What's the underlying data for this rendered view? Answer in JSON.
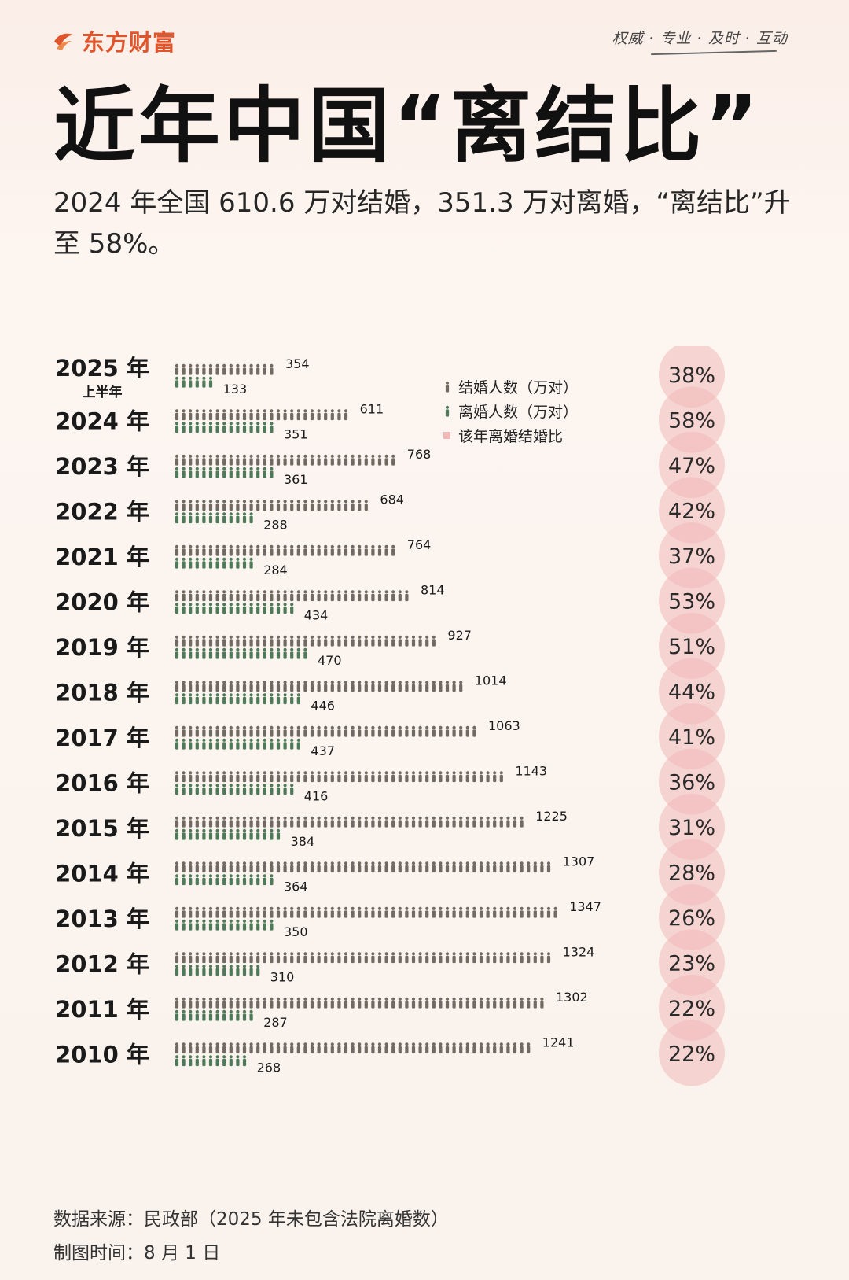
{
  "header": {
    "brand": "东方财富",
    "slogan": "权威 · 专业 · 及时 · 互动"
  },
  "title": "近年中国“离结比”",
  "subtitle": "2024 年全国 610.6 万对结婚，351.3 万对离婚，“离结比”升至 58%。",
  "legend": {
    "marriage": "结婚人数（万对）",
    "divorce": "离婚人数（万对）",
    "ratio": "该年离婚结婚比"
  },
  "colors": {
    "marriage": "#6f6a62",
    "divorce": "#4e7a5a",
    "circle": "#f1b8b8",
    "text": "#1a1a1a"
  },
  "chart_data": {
    "type": "bar",
    "categories": [
      "2025 年",
      "2024 年",
      "2023 年",
      "2022 年",
      "2021 年",
      "2020 年",
      "2019 年",
      "2018 年",
      "2017 年",
      "2016 年",
      "2015 年",
      "2014 年",
      "2013 年",
      "2012 年",
      "2011 年",
      "2010 年"
    ],
    "category_notes": [
      "上半年",
      "",
      "",
      "",
      "",
      "",
      "",
      "",
      "",
      "",
      "",
      "",
      "",
      "",
      "",
      ""
    ],
    "series": [
      {
        "name": "结婚人数（万对）",
        "values": [
          354,
          611,
          768,
          684,
          764,
          814,
          927,
          1014,
          1063,
          1143,
          1225,
          1307,
          1347,
          1324,
          1302,
          1241
        ]
      },
      {
        "name": "离婚人数（万对）",
        "values": [
          133,
          351,
          361,
          288,
          284,
          434,
          470,
          446,
          437,
          416,
          384,
          364,
          350,
          310,
          287,
          268
        ]
      },
      {
        "name": "该年离婚结婚比",
        "values": [
          "38%",
          "58%",
          "47%",
          "42%",
          "37%",
          "53%",
          "51%",
          "44%",
          "41%",
          "36%",
          "31%",
          "28%",
          "26%",
          "23%",
          "22%",
          "22%"
        ]
      }
    ]
  },
  "footer": {
    "source": "数据来源：民政部（2025 年未包含法院离婚数）",
    "date": "制图时间：8 月 1 日"
  }
}
